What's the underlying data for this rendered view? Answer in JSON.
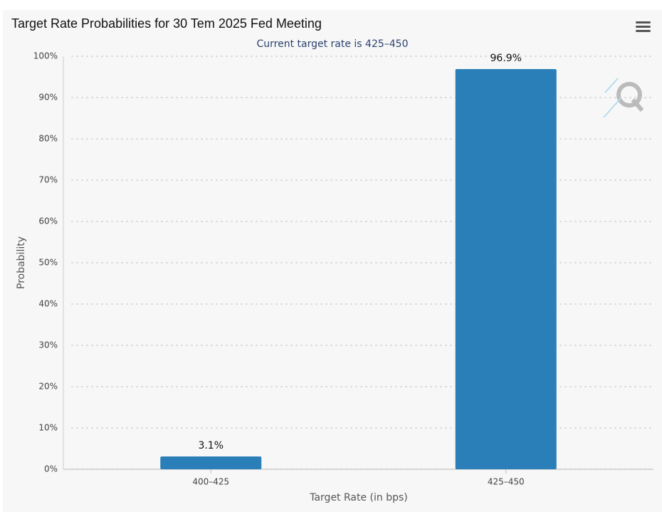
{
  "chart_data": {
    "type": "bar",
    "title": "Target Rate Probabilities for 30 Tem 2025 Fed Meeting",
    "subtitle": "Current target rate is 425–450",
    "x_label": "Target Rate (in bps)",
    "y_label": "Probability",
    "categories": [
      "400–425",
      "425–450"
    ],
    "values": [
      3.1,
      96.9
    ],
    "value_labels": [
      "3.1%",
      "96.9%"
    ],
    "color": "#2a7fb8",
    "ylim": [
      0,
      100
    ],
    "yticks": [
      {
        "value": 0,
        "label": "0%"
      },
      {
        "value": 10,
        "label": "10%"
      },
      {
        "value": 20,
        "label": "20%"
      },
      {
        "value": 30,
        "label": "30%"
      },
      {
        "value": 40,
        "label": "40%"
      },
      {
        "value": 50,
        "label": "50%"
      },
      {
        "value": 60,
        "label": "60%"
      },
      {
        "value": 70,
        "label": "70%"
      },
      {
        "value": 80,
        "label": "80%"
      },
      {
        "value": 90,
        "label": "90%"
      },
      {
        "value": 100,
        "label": "100%"
      }
    ],
    "grid": true
  }
}
